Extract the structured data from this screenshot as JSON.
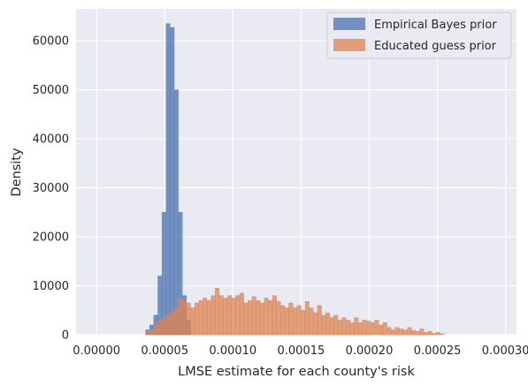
{
  "chart_data": {
    "type": "histogram",
    "xlabel": "LMSE estimate for each county's risk",
    "ylabel": "Density",
    "xlim": [
      -1.5e-05,
      0.000308
    ],
    "ylim": [
      0,
      66500
    ],
    "x_ticks": [
      0.0,
      5e-05,
      0.0001,
      0.00015,
      0.0002,
      0.00025,
      0.0003
    ],
    "x_tick_labels": [
      "0.00000",
      "0.00005",
      "0.00010",
      "0.00015",
      "0.00020",
      "0.00025",
      "0.00030"
    ],
    "y_ticks": [
      0,
      10000,
      20000,
      30000,
      40000,
      50000,
      60000
    ],
    "y_tick_labels": [
      "0",
      "10000",
      "20000",
      "30000",
      "40000",
      "50000",
      "60000"
    ],
    "grid": true,
    "legend_position": "top-right",
    "bin_start": 0.0,
    "bin_width": 3e-06,
    "series": [
      {
        "name": "Empirical Bayes prior",
        "color": "#4c72b0",
        "values": [
          0,
          0,
          0,
          0,
          0,
          0,
          0,
          0,
          0,
          0,
          0,
          0,
          1000,
          2000,
          4000,
          12000,
          25000,
          63500,
          62700,
          50000,
          25000,
          8000,
          3000,
          0,
          0,
          0,
          0,
          0,
          0,
          0,
          0,
          0,
          0,
          0,
          0,
          0,
          0,
          0,
          0,
          0,
          0,
          0,
          0,
          0,
          0,
          0,
          0,
          0,
          0,
          0,
          0,
          0,
          0,
          0,
          0,
          0,
          0,
          0,
          0,
          0,
          0,
          0,
          0,
          0,
          0,
          0,
          0,
          0,
          0,
          0,
          0,
          0,
          0,
          0,
          0,
          0,
          0,
          0,
          0,
          0,
          0,
          0,
          0,
          0,
          0,
          0,
          0,
          0,
          0,
          0,
          0,
          0,
          0,
          0,
          0,
          0,
          0,
          0,
          0,
          0
        ]
      },
      {
        "name": "Educated guess prior",
        "color": "#dd8452",
        "values": [
          0,
          0,
          0,
          0,
          0,
          0,
          0,
          0,
          0,
          0,
          0,
          0,
          500,
          1000,
          2000,
          3000,
          3500,
          4000,
          4800,
          5500,
          7500,
          7000,
          6500,
          5500,
          6500,
          7000,
          7500,
          7000,
          8000,
          9500,
          8000,
          7500,
          8000,
          7500,
          8000,
          8500,
          6500,
          7000,
          7800,
          7000,
          6500,
          7500,
          7000,
          8000,
          6800,
          6000,
          5500,
          6500,
          5500,
          6000,
          5000,
          6800,
          5500,
          4500,
          6000,
          4000,
          4500,
          3500,
          4000,
          3000,
          3500,
          3000,
          2500,
          3500,
          2500,
          3000,
          2800,
          2500,
          3000,
          2000,
          2500,
          1500,
          1000,
          1500,
          1200,
          1000,
          1500,
          900,
          700,
          1200,
          500,
          700,
          300,
          500,
          200,
          0,
          0,
          0,
          0,
          0,
          0,
          0,
          0,
          0,
          0,
          0,
          0,
          0,
          0,
          0
        ]
      }
    ]
  }
}
